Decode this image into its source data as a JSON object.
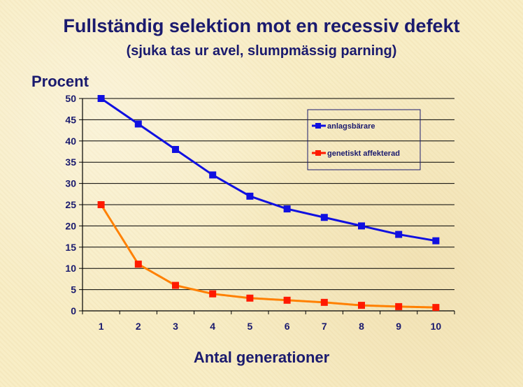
{
  "chart_data": {
    "type": "line",
    "title": "Fullständig selektion mot en recessiv defekt",
    "subtitle": "(sjuka tas ur avel, slumpmässig parning)",
    "ylabel": "Procent",
    "xlabel": "Antal generationer",
    "categories": [
      "1",
      "2",
      "3",
      "4",
      "5",
      "6",
      "7",
      "8",
      "9",
      "10"
    ],
    "ylim": [
      0,
      50
    ],
    "yticks": [
      0,
      5,
      10,
      15,
      20,
      25,
      30,
      35,
      40,
      45,
      50
    ],
    "grid": true,
    "legend_position": "top-right",
    "series": [
      {
        "name": "anlagsbärare",
        "color": "#1010e0",
        "marker": "#1010e0",
        "values": [
          50,
          44,
          38,
          32,
          27,
          24,
          22,
          20,
          18,
          16.5
        ]
      },
      {
        "name": "genetiskt affekterad",
        "color": "#ff8000",
        "marker": "#ff1a00",
        "values": [
          25,
          11,
          6,
          4,
          3,
          2.5,
          2,
          1.3,
          1,
          0.8
        ]
      }
    ]
  }
}
